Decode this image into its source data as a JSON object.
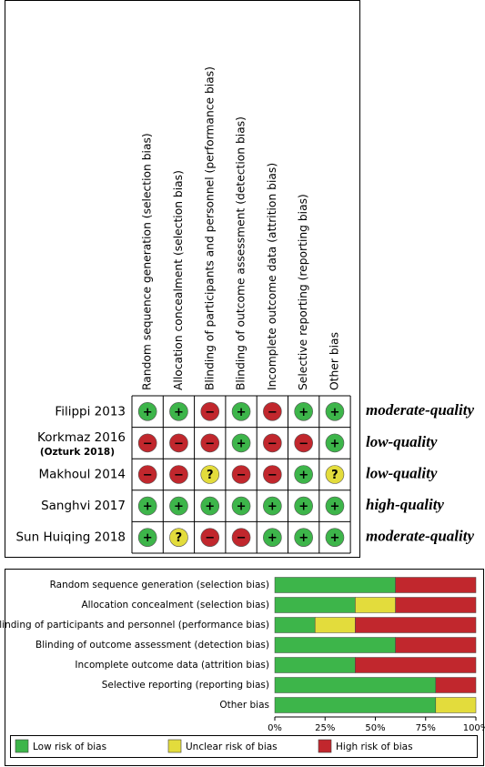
{
  "summary": {
    "domains": [
      "Random sequence generation (selection bias)",
      "Allocation concealment (selection bias)",
      "Blinding of participants and personnel (performance bias)",
      "Blinding of outcome assessment (detection bias)",
      "Incomplete outcome data (attrition bias)",
      "Selective reporting (reporting bias)",
      "Other bias"
    ],
    "judgment_colors": {
      "+": "#3db54a",
      "?": "#e3dc3c",
      "−": "#c1272d"
    },
    "studies": [
      {
        "name": "Filippi 2013",
        "quality": "moderate-quality",
        "judgments": [
          "+",
          "+",
          "−",
          "+",
          "−",
          "+",
          "+"
        ]
      },
      {
        "name": "Korkmaz 2016",
        "note": "(Ozturk 2018)",
        "quality": "low-quality",
        "judgments": [
          "−",
          "−",
          "−",
          "+",
          "−",
          "−",
          "+"
        ]
      },
      {
        "name": "Makhoul 2014",
        "quality": "low-quality",
        "judgments": [
          "−",
          "−",
          "?",
          "−",
          "−",
          "+",
          "?"
        ]
      },
      {
        "name": "Sanghvi 2017",
        "quality": "high-quality",
        "judgments": [
          "+",
          "+",
          "+",
          "+",
          "+",
          "+",
          "+"
        ]
      },
      {
        "name": "Sun Huiqing 2018",
        "quality": "moderate-quality",
        "judgments": [
          "+",
          "?",
          "−",
          "−",
          "+",
          "+",
          "+"
        ]
      }
    ]
  },
  "chart_data": {
    "type": "bar",
    "orientation": "horizontal",
    "stacked": true,
    "categories": [
      "Random sequence generation (selection bias)",
      "Allocation concealment (selection bias)",
      "Blinding of participants and personnel (performance bias)",
      "Blinding of outcome assessment (detection bias)",
      "Incomplete outcome data (attrition bias)",
      "Selective reporting (reporting bias)",
      "Other bias"
    ],
    "series": [
      {
        "name": "Low risk of bias",
        "color": "#3db54a",
        "values": [
          60,
          40,
          20,
          60,
          40,
          80,
          80
        ]
      },
      {
        "name": "Unclear risk of bias",
        "color": "#e3dc3c",
        "values": [
          0,
          20,
          20,
          0,
          0,
          0,
          20
        ]
      },
      {
        "name": "High risk of bias",
        "color": "#c1272d",
        "values": [
          40,
          40,
          60,
          40,
          60,
          20,
          0
        ]
      }
    ],
    "xlim": [
      0,
      100
    ],
    "xticks": [
      {
        "value": 0,
        "label": "0%"
      },
      {
        "value": 25,
        "label": "25%"
      },
      {
        "value": 50,
        "label": "50%"
      },
      {
        "value": 75,
        "label": "75%"
      },
      {
        "value": 100,
        "label": "100%"
      }
    ]
  }
}
